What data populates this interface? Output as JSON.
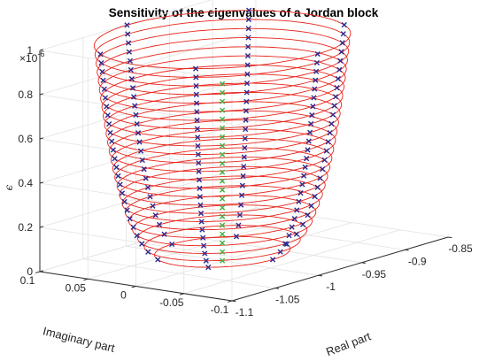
{
  "chart_data": {
    "type": "line3d",
    "title": "Sensitivity of the eigenvalues of a Jordan block",
    "xlabel": "Real part",
    "ylabel": "Imaginary part",
    "zlabel": "ϵ",
    "z_multiplier": "×10",
    "z_exponent": "-6",
    "xlim": [
      -1.1,
      -0.85
    ],
    "ylim": [
      -0.1,
      0.1
    ],
    "zlim": [
      0,
      1
    ],
    "x_ticks": [
      -1.1,
      -1.05,
      -1,
      -0.95,
      -0.9,
      -0.85
    ],
    "x_tick_labels": [
      "-1.1",
      "-1.05",
      "-1",
      "-0.95",
      "-0.9",
      "-0.85"
    ],
    "y_ticks": [
      -0.1,
      -0.05,
      0,
      0.05,
      0.1
    ],
    "y_tick_labels": [
      "-0.1",
      "-0.05",
      "0",
      "0.05",
      "0.1"
    ],
    "z_ticks": [
      0,
      0.2,
      0.4,
      0.6,
      0.8,
      1
    ],
    "z_tick_labels": [
      "0",
      "0.2",
      "0.4",
      "0.6",
      "0.8",
      "1"
    ],
    "grid": true,
    "center_x": -1,
    "center_y": 0,
    "circles": {
      "levels": [
        0.04,
        0.08,
        0.12,
        0.16,
        0.2,
        0.24,
        0.28,
        0.32,
        0.36,
        0.4,
        0.44,
        0.48,
        0.52,
        0.56,
        0.6,
        0.64,
        0.68,
        0.72,
        0.76,
        0.8,
        0.84,
        0.88,
        0.92,
        0.96,
        1.0
      ],
      "radii": [
        0.0525,
        0.0604,
        0.0655,
        0.0695,
        0.0724,
        0.0752,
        0.0775,
        0.0796,
        0.0815,
        0.0832,
        0.0848,
        0.0862,
        0.0876,
        0.0888,
        0.09,
        0.0912,
        0.0922,
        0.0932,
        0.0942,
        0.0952,
        0.096,
        0.0969,
        0.0977,
        0.0985,
        0.0992
      ],
      "color": "#e8251c"
    },
    "series": [
      {
        "marker": "x",
        "color": "#2b2b8f",
        "branch_angles_deg": [
          90,
          270,
          30,
          150,
          210,
          330
        ],
        "levels": [
          0.04,
          0.08,
          0.12,
          0.16,
          0.2,
          0.24,
          0.28,
          0.32,
          0.36,
          0.4,
          0.44,
          0.48,
          0.52,
          0.56,
          0.6,
          0.64,
          0.68,
          0.72,
          0.76,
          0.8,
          0.84,
          0.88,
          0.92,
          0.96,
          1.0
        ],
        "radii": [
          0.0525,
          0.0604,
          0.0655,
          0.0695,
          0.0724,
          0.0752,
          0.0775,
          0.0796,
          0.0815,
          0.0832,
          0.0848,
          0.0862,
          0.0876,
          0.0888,
          0.09,
          0.0912,
          0.0922,
          0.0932,
          0.0942,
          0.0952,
          0.096,
          0.0969,
          0.0977,
          0.0985,
          0.0992
        ]
      },
      {
        "marker": "x",
        "color": "#3fb13f",
        "x": -1,
        "y": 0,
        "levels": [
          0.0,
          0.04,
          0.08,
          0.12,
          0.16,
          0.2,
          0.24,
          0.28,
          0.32,
          0.36,
          0.4,
          0.44,
          0.48,
          0.52,
          0.56,
          0.6,
          0.64,
          0.68,
          0.72,
          0.76,
          0.8
        ]
      }
    ]
  }
}
